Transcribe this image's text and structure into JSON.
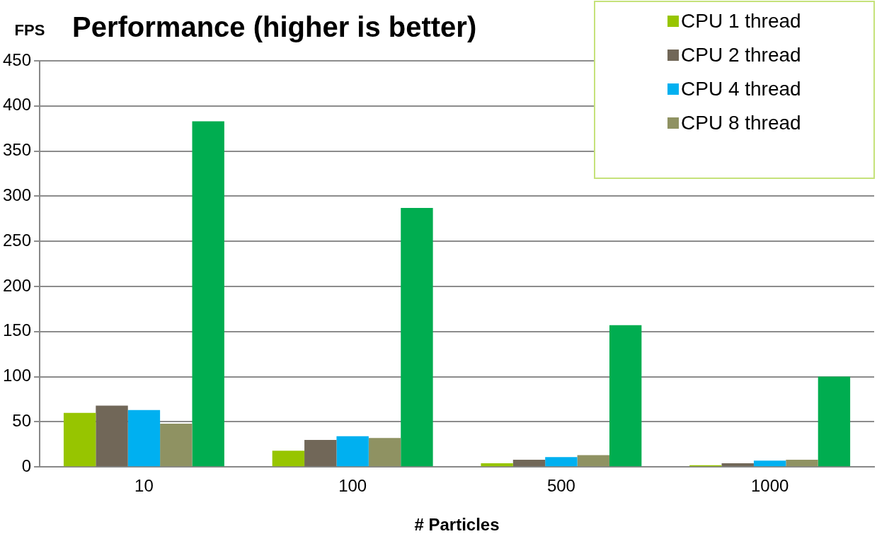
{
  "chart_data": {
    "type": "bar",
    "title": "Performance (higher is better)",
    "ylabel": "FPS",
    "xlabel": "# Particles",
    "categories": [
      "10",
      "100",
      "500",
      "1000"
    ],
    "series": [
      {
        "name": "CPU 1 thread",
        "color": "#97c500",
        "values": [
          60,
          18,
          4,
          2
        ]
      },
      {
        "name": "CPU 2 thread",
        "color": "#716758",
        "values": [
          68,
          30,
          8,
          4
        ]
      },
      {
        "name": "CPU 4 thread",
        "color": "#00b0f0",
        "values": [
          63,
          34,
          11,
          7
        ]
      },
      {
        "name": "CPU 8 thread",
        "color": "#8f9262",
        "values": [
          48,
          32,
          13,
          8
        ]
      },
      {
        "color": "#00ad50",
        "values": [
          383,
          287,
          157,
          100
        ]
      }
    ],
    "ylim": [
      0,
      450
    ],
    "yticks": [
      0,
      50,
      100,
      150,
      200,
      250,
      300,
      350,
      400,
      450
    ],
    "grid": "y",
    "legend": "top right"
  }
}
